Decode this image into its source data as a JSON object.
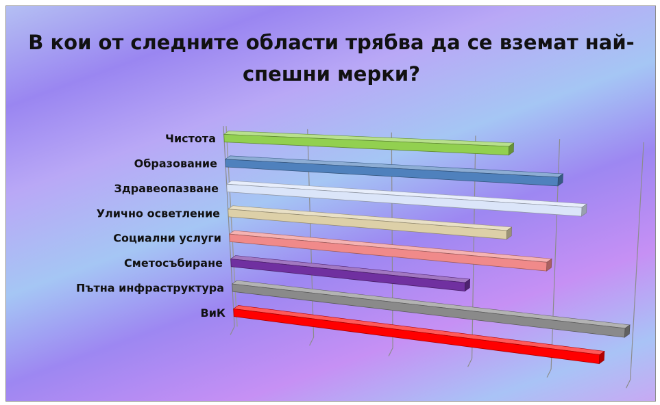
{
  "chart_data": {
    "type": "bar",
    "title": "В кои от следните области трябва да се вземат най-спешни мерки?",
    "categories": [
      "Чистота",
      "Образование",
      "Здравеопазване",
      "Улично осветление",
      "Социални услуги",
      "Сметосъбиране",
      "Пътна инфраструктура",
      "ВиК"
    ],
    "values": [
      3.4,
      4.0,
      4.3,
      3.4,
      3.9,
      2.9,
      4.9,
      4.6
    ],
    "colors": [
      "#92d050",
      "#4f81bd",
      "#dbe5f9",
      "#ddd0a8",
      "#f08a8a",
      "#7030a0",
      "#8a8a8a",
      "#ff0000"
    ],
    "xlim": [
      0,
      5
    ],
    "gridlines": true,
    "legend": "none",
    "style": "3d-perspective-horizontal-bar"
  }
}
